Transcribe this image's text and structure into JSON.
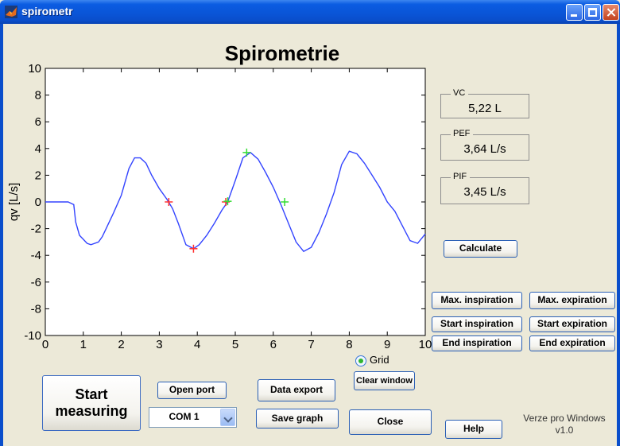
{
  "window": {
    "title": "spirometr"
  },
  "figure": {
    "title": "Spirometrie"
  },
  "chart_data": {
    "type": "line",
    "xlim": [
      0,
      10
    ],
    "ylim": [
      -10,
      10
    ],
    "xticks": [
      "0",
      "1",
      "2",
      "3",
      "4",
      "5",
      "6",
      "7",
      "8",
      "9",
      "10"
    ],
    "yticks": [
      "10",
      "8",
      "6",
      "4",
      "2",
      "0",
      "-2",
      "-4",
      "-6",
      "-8",
      "-10"
    ],
    "xlabel": "",
    "ylabel": "qv [L/s]",
    "grid": false,
    "line_color": "#3344ff",
    "series": [
      {
        "x": [
          0,
          0.2,
          0.4,
          0.6,
          0.75,
          0.8,
          0.9,
          1.0,
          1.1,
          1.2,
          1.4,
          1.5,
          1.6,
          1.8,
          2.0,
          2.2,
          2.35,
          2.5,
          2.65,
          2.8,
          3.0,
          3.2,
          3.35,
          3.5,
          3.7,
          3.9,
          4.05,
          4.25,
          4.45,
          4.65,
          4.8,
          5.0,
          5.2,
          5.4,
          5.6,
          5.8,
          6.0,
          6.2,
          6.4,
          6.6,
          6.8,
          7.0,
          7.2,
          7.4,
          7.6,
          7.8,
          8.0,
          8.2,
          8.4,
          8.6,
          8.8,
          9.0,
          9.2,
          9.4,
          9.6,
          9.8,
          10.0
        ],
        "y": [
          0,
          0,
          0,
          0,
          -0.2,
          -1.5,
          -2.5,
          -2.8,
          -3.1,
          -3.2,
          -3.0,
          -2.6,
          -2.0,
          -0.8,
          0.5,
          2.5,
          3.3,
          3.3,
          2.9,
          2.0,
          1.0,
          0.2,
          -0.5,
          -1.6,
          -3.2,
          -3.5,
          -3.2,
          -2.5,
          -1.6,
          -0.6,
          0,
          1.6,
          3.3,
          3.7,
          3.2,
          2.2,
          1.1,
          -0.2,
          -1.6,
          -3.0,
          -3.7,
          -3.4,
          -2.3,
          -0.9,
          0.7,
          2.8,
          3.8,
          3.6,
          2.9,
          2.0,
          1.1,
          0,
          -0.7,
          -1.8,
          -2.9,
          -3.1,
          -2.4
        ]
      }
    ],
    "markers": [
      {
        "x": 3.25,
        "y": 0.0,
        "color": "#ff3030"
      },
      {
        "x": 3.9,
        "y": -3.5,
        "color": "#ff3030"
      },
      {
        "x": 4.75,
        "y": 0.0,
        "color": "#ff3030"
      },
      {
        "x": 4.8,
        "y": 0.05,
        "color": "#33dd33"
      },
      {
        "x": 5.3,
        "y": 3.7,
        "color": "#33dd33"
      },
      {
        "x": 6.3,
        "y": 0.0,
        "color": "#33dd33"
      }
    ]
  },
  "results": {
    "vc": {
      "label": "VC",
      "value": "5,22 L"
    },
    "pef": {
      "label": "PEF",
      "value": "3,64 L/s"
    },
    "pif": {
      "label": "PIF",
      "value": "3,45 L/s"
    }
  },
  "buttons": {
    "calculate": "Calculate",
    "max_inspiration": "Max. inspiration",
    "max_expiration": "Max. expiration",
    "start_inspiration": "Start inspiration",
    "start_expiration": "Start expiration",
    "end_inspiration": "End inspiration",
    "end_expiration": "End expiration",
    "clear_window": "Clear window",
    "start_measuring": "Start measuring",
    "open_port": "Open port",
    "data_export": "Data export",
    "save_graph": "Save graph",
    "close": "Close",
    "help": "Help"
  },
  "grid_option": {
    "label": "Grid",
    "selected": true
  },
  "port_select": {
    "value": "COM 1"
  },
  "version": {
    "line1": "Verze pro Windows",
    "line2": "v1.0"
  }
}
